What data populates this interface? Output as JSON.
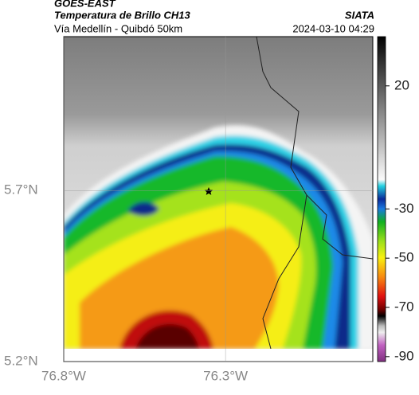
{
  "header": {
    "title": "GOES-EAST",
    "subtitle": "Temperatura de Brillo CH13",
    "source": "SIATA",
    "route": "Vía Medellín - Quibdó 50km",
    "datetime": "2024-03-10 04:29"
  },
  "map": {
    "lat_range": [
      5.2,
      6.15
    ],
    "lon_range": [
      -76.8,
      -75.845
    ],
    "lat_ticks": [
      {
        "value": 5.7,
        "label": "5.7°N"
      },
      {
        "value": 5.2,
        "label": "5.2°N"
      }
    ],
    "lon_ticks": [
      {
        "value": -76.8,
        "label": "76.8°W"
      },
      {
        "value": -76.3,
        "label": "76.3°W"
      }
    ]
  },
  "colorbar": {
    "range": [
      40,
      -92
    ],
    "ticks": [
      20,
      -30,
      -50,
      -70,
      -90
    ]
  }
}
